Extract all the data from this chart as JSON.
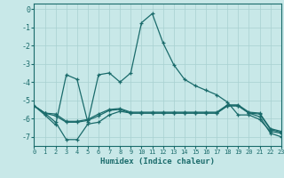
{
  "xlabel": "Humidex (Indice chaleur)",
  "background_color": "#c8e8e8",
  "grid_color": "#a8d0d0",
  "line_color": "#1a6b6b",
  "xlim": [
    0,
    23
  ],
  "ylim": [
    -7.5,
    0.3
  ],
  "yticks": [
    0,
    -1,
    -2,
    -3,
    -4,
    -5,
    -6,
    -7
  ],
  "xticks": [
    0,
    1,
    2,
    3,
    4,
    5,
    6,
    7,
    8,
    9,
    10,
    11,
    12,
    13,
    14,
    15,
    16,
    17,
    18,
    19,
    20,
    21,
    22,
    23
  ],
  "series": [
    {
      "x": [
        0,
        1,
        2,
        3,
        4,
        5,
        6,
        7,
        8,
        9,
        10,
        11,
        12,
        13,
        14,
        15,
        16,
        17,
        18,
        19,
        20,
        21,
        22,
        23
      ],
      "y": [
        -5.3,
        -5.7,
        -6.2,
        -7.15,
        -7.15,
        -6.3,
        -6.2,
        -5.8,
        -5.6,
        -5.7,
        -5.7,
        -5.7,
        -5.7,
        -5.7,
        -5.7,
        -5.7,
        -5.7,
        -5.7,
        -5.3,
        -5.3,
        -5.7,
        -5.9,
        -6.8,
        -7.0
      ]
    },
    {
      "x": [
        0,
        1,
        2,
        3,
        4,
        5,
        6,
        7,
        8,
        9,
        10,
        11,
        12,
        13,
        14,
        15,
        16,
        17,
        18,
        19,
        20,
        21,
        22,
        23
      ],
      "y": [
        -5.3,
        -5.7,
        -5.85,
        -6.2,
        -6.2,
        -6.1,
        -5.85,
        -5.55,
        -5.5,
        -5.7,
        -5.7,
        -5.7,
        -5.7,
        -5.7,
        -5.7,
        -5.7,
        -5.7,
        -5.7,
        -5.3,
        -5.3,
        -5.7,
        -5.75,
        -6.6,
        -6.75
      ]
    },
    {
      "x": [
        0,
        1,
        2,
        3,
        4,
        5,
        6,
        7,
        8,
        9,
        10,
        11,
        12,
        13,
        14,
        15,
        16,
        17,
        18,
        19,
        20,
        21,
        22,
        23
      ],
      "y": [
        -5.3,
        -5.7,
        -5.75,
        -6.15,
        -6.15,
        -6.05,
        -5.75,
        -5.5,
        -5.45,
        -5.65,
        -5.65,
        -5.65,
        -5.65,
        -5.65,
        -5.65,
        -5.65,
        -5.65,
        -5.65,
        -5.25,
        -5.25,
        -5.65,
        -5.7,
        -6.55,
        -6.7
      ]
    },
    {
      "x": [
        0,
        1,
        2,
        3,
        4,
        5,
        6,
        7,
        8,
        9,
        10,
        11,
        12,
        13,
        14,
        15,
        16,
        17,
        18,
        19,
        20,
        21,
        22,
        23
      ],
      "y": [
        -5.3,
        -5.8,
        -6.35,
        -3.6,
        -3.85,
        -6.2,
        -3.6,
        -3.5,
        -4.0,
        -3.5,
        -0.75,
        -0.25,
        -1.85,
        -3.05,
        -3.85,
        -4.2,
        -4.45,
        -4.7,
        -5.1,
        -5.8,
        -5.8,
        -6.05,
        -6.7,
        -6.8
      ]
    }
  ]
}
